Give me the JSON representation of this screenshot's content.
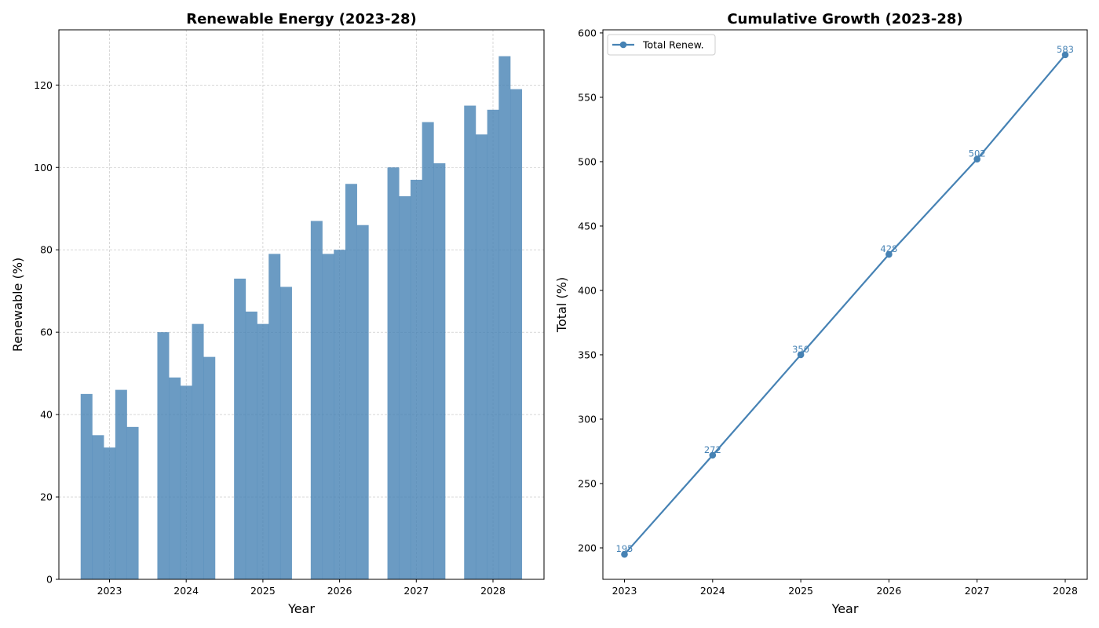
{
  "colors": {
    "bar": "#4682b4",
    "bar_opacity": 0.8,
    "line": "#4682b4",
    "grid": "#b0b0b0",
    "axis": "#000000",
    "background": "#ffffff"
  },
  "chart_data": [
    {
      "type": "bar",
      "title": "Renewable Energy (2023-28)",
      "xlabel": "Year",
      "ylabel": "Renewable (%)",
      "categories": [
        "2023",
        "2024",
        "2025",
        "2026",
        "2027",
        "2028"
      ],
      "series": [
        {
          "values": [
            45,
            60,
            73,
            87,
            100,
            115
          ]
        },
        {
          "values": [
            35,
            49,
            65,
            79,
            93,
            108
          ]
        },
        {
          "values": [
            32,
            47,
            62,
            80,
            97,
            114
          ]
        },
        {
          "values": [
            46,
            62,
            79,
            96,
            111,
            127
          ]
        },
        {
          "values": [
            37,
            54,
            71,
            86,
            101,
            119
          ]
        }
      ],
      "ylim": [
        0,
        133.4
      ],
      "yticks": [
        0,
        20,
        40,
        60,
        80,
        100,
        120
      ],
      "grid": true
    },
    {
      "type": "line",
      "title": "Cumulative Growth (2023-28)",
      "xlabel": "Year",
      "ylabel": "Total (%)",
      "x": [
        2023,
        2024,
        2025,
        2026,
        2027,
        2028
      ],
      "xticks": [
        "2023",
        "2024",
        "2025",
        "2026",
        "2027",
        "2028"
      ],
      "series": [
        {
          "name": "Total Renew.",
          "values": [
            195,
            272,
            350,
            428,
            502,
            583
          ],
          "marker": "circle"
        }
      ],
      "ylim": [
        175.6,
        602.4
      ],
      "yticks": [
        200,
        250,
        300,
        350,
        400,
        450,
        500,
        550,
        600
      ],
      "legend": "top-left",
      "grid": false,
      "data_labels": [
        "195",
        "272",
        "350",
        "428",
        "502",
        "583"
      ]
    }
  ]
}
